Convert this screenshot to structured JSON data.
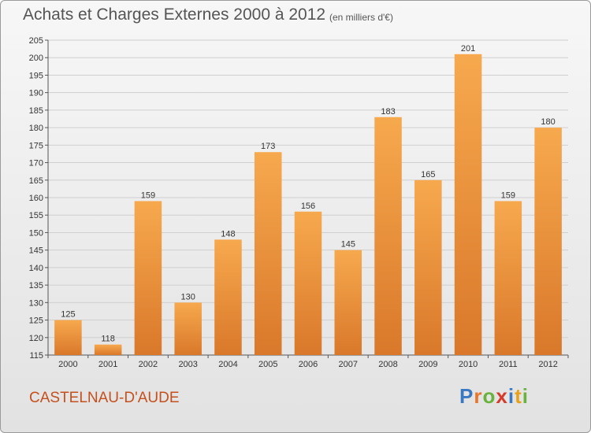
{
  "header": {
    "title": "Achats et Charges Externes 2000 à 2012",
    "subtitle": "(en milliers d'€)"
  },
  "footer": {
    "location": "CASTELNAU-D'AUDE",
    "logo": {
      "text": "Proxiti",
      "letters": [
        {
          "char": "P",
          "color": "#3a78c2"
        },
        {
          "char": "r",
          "color": "#e8752a"
        },
        {
          "char": "o",
          "color": "#6ab23e"
        },
        {
          "char": "x",
          "color": "#d63a2a"
        },
        {
          "char": "i",
          "color": "#3a78c2"
        },
        {
          "char": "t",
          "color": "#e8a21a"
        },
        {
          "char": "i",
          "color": "#6ab23e"
        }
      ]
    }
  },
  "colors": {
    "bar_light": "#f7a94e",
    "bar_dark": "#d9782a",
    "grid": "#cfcfcf",
    "location_text": "#c4501e"
  },
  "chart_data": {
    "type": "bar",
    "title": "Achats et Charges Externes 2000 à 2012",
    "subtitle": "(en milliers d'€)",
    "categories": [
      "2000",
      "2001",
      "2002",
      "2003",
      "2004",
      "2005",
      "2006",
      "2007",
      "2008",
      "2009",
      "2010",
      "2011",
      "2012"
    ],
    "values": [
      125,
      118,
      159,
      130,
      148,
      173,
      156,
      145,
      183,
      165,
      201,
      159,
      180
    ],
    "ylim": [
      115,
      205
    ],
    "yticks": [
      115,
      120,
      125,
      130,
      135,
      140,
      145,
      150,
      155,
      160,
      165,
      170,
      175,
      180,
      185,
      190,
      195,
      200,
      205
    ],
    "grid": true,
    "data_labels": true
  }
}
